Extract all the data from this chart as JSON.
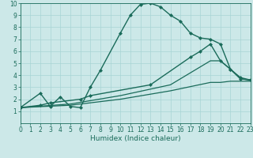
{
  "xlabel": "Humidex (Indice chaleur)",
  "xlim": [
    0,
    23
  ],
  "ylim": [
    0,
    10
  ],
  "bg_color": "#cce8e8",
  "line_color": "#1a6b5a",
  "lines": [
    {
      "x": [
        0,
        2,
        3,
        4,
        5,
        6,
        7,
        8,
        10,
        11,
        12,
        13,
        14,
        15,
        16,
        17,
        18,
        19,
        20,
        21,
        22,
        23
      ],
      "y": [
        1.3,
        2.5,
        1.4,
        2.2,
        1.4,
        1.3,
        3.0,
        4.4,
        7.5,
        9.0,
        9.9,
        10.0,
        9.7,
        9.0,
        8.5,
        7.5,
        7.1,
        7.0,
        6.6,
        4.5,
        3.7,
        3.6
      ],
      "marker": "D",
      "markersize": 2.0,
      "linewidth": 1.0
    },
    {
      "x": [
        0,
        2,
        3,
        6,
        7,
        13,
        17,
        18,
        19,
        20,
        21,
        22,
        23
      ],
      "y": [
        1.3,
        1.5,
        1.7,
        2.0,
        2.3,
        3.2,
        5.5,
        6.0,
        6.6,
        5.2,
        4.5,
        3.8,
        3.6
      ],
      "marker": "D",
      "markersize": 2.0,
      "linewidth": 1.0
    },
    {
      "x": [
        0,
        5,
        10,
        15,
        19,
        20,
        21,
        22,
        23
      ],
      "y": [
        1.3,
        1.6,
        2.3,
        3.2,
        5.2,
        5.2,
        4.5,
        3.7,
        3.6
      ],
      "marker": null,
      "markersize": 0,
      "linewidth": 0.9
    },
    {
      "x": [
        0,
        5,
        10,
        15,
        19,
        20,
        21,
        22,
        23
      ],
      "y": [
        1.3,
        1.5,
        2.0,
        2.7,
        3.4,
        3.4,
        3.5,
        3.5,
        3.5
      ],
      "marker": null,
      "markersize": 0,
      "linewidth": 0.9
    }
  ],
  "grid_color": "#a8d4d4",
  "tick_fontsize": 5.5,
  "label_fontsize": 6.5,
  "xticks": [
    0,
    1,
    2,
    3,
    4,
    5,
    6,
    7,
    8,
    9,
    10,
    11,
    12,
    13,
    14,
    15,
    16,
    17,
    18,
    19,
    20,
    21,
    22,
    23
  ],
  "yticks": [
    1,
    2,
    3,
    4,
    5,
    6,
    7,
    8,
    9,
    10
  ]
}
